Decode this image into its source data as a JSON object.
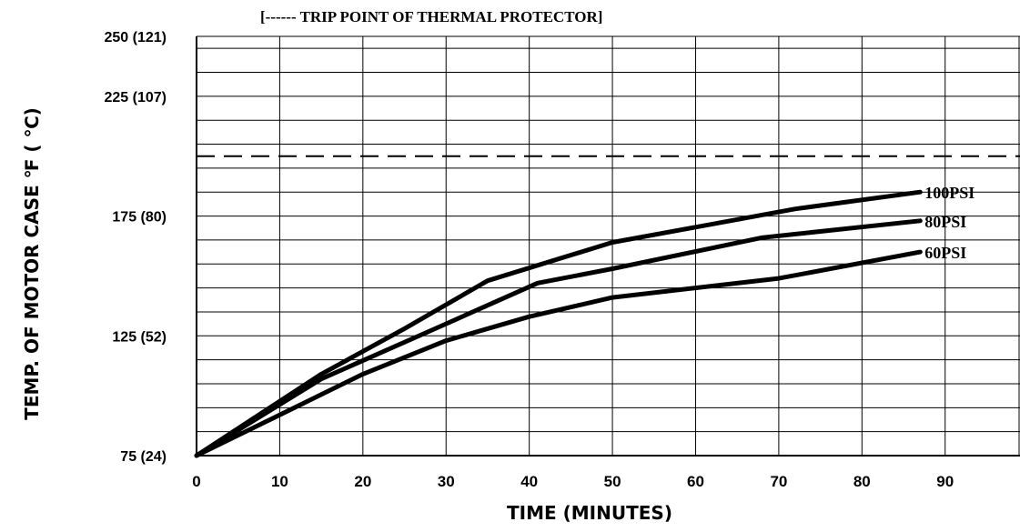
{
  "chart_data": {
    "type": "line",
    "title": "[------ TRIP POINT OF THERMAL PROTECTOR]",
    "xlabel": "TIME (MINUTES)",
    "ylabel": "TEMP. OF MOTOR CASE  ℉ ( ℃)",
    "xlim": [
      0,
      99
    ],
    "ylim": [
      75,
      250
    ],
    "x_ticks": [
      0,
      10,
      20,
      30,
      40,
      50,
      60,
      70,
      80,
      90
    ],
    "x_tick_labels": [
      "0",
      "10",
      "20",
      "30",
      "40",
      "50",
      "60",
      "70",
      "80",
      "90"
    ],
    "y_ticks": [
      75,
      125,
      175,
      225,
      250
    ],
    "y_tick_labels": [
      "75  (24)",
      "125  (52)",
      "175  (80)",
      "225 (107)",
      "250 (121)"
    ],
    "grid": true,
    "grid_minor_y_step": 10,
    "threshold_line": {
      "y": 200,
      "style": "dashed"
    },
    "series": [
      {
        "name": "100PSI",
        "x": [
          0,
          15,
          25,
          35,
          50,
          72,
          87
        ],
        "y": [
          75,
          109,
          128,
          148,
          164,
          178,
          185
        ]
      },
      {
        "name": "80PSI",
        "x": [
          0,
          15,
          30,
          41,
          50,
          68,
          87
        ],
        "y": [
          75,
          107,
          130,
          147,
          153,
          166,
          173
        ]
      },
      {
        "name": "60PSI",
        "x": [
          0,
          10,
          20,
          30,
          40,
          50,
          70,
          87
        ],
        "y": [
          75,
          92,
          109,
          123,
          133,
          141,
          149,
          160
        ]
      }
    ],
    "colors": {
      "series": "#000000",
      "grid": "#000000",
      "background": "#ffffff"
    }
  }
}
